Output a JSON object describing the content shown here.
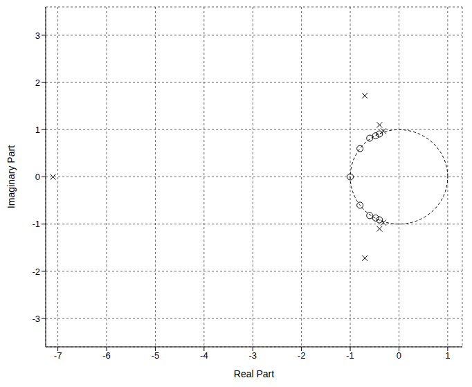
{
  "chart_data": {
    "type": "scatter",
    "x_label": "Real Part",
    "y_label": "Imaginary Part",
    "xlim": [
      -7.25,
      1.3
    ],
    "ylim": [
      -3.6,
      3.6
    ],
    "xticks": [
      -7,
      -6,
      -5,
      -4,
      -3,
      -2,
      -1,
      0,
      1
    ],
    "yticks": [
      -3,
      -2,
      -1,
      0,
      1,
      2,
      3
    ],
    "grid": true,
    "series": [
      {
        "marker": "x",
        "color": "#000000",
        "x": [
          -7.1,
          -0.7,
          -0.7,
          -0.4,
          -0.4,
          -0.32,
          -0.32
        ],
        "values": [
          0,
          1.72,
          -1.72,
          1.1,
          -1.1,
          0.97,
          -0.97
        ]
      },
      {
        "marker": "o",
        "color": "#000000",
        "x": [
          -1,
          -0.8,
          -0.8,
          -0.6,
          -0.6,
          -0.48,
          -0.48,
          -0.4,
          -0.4
        ],
        "values": [
          0,
          0.6,
          -0.6,
          0.82,
          -0.82,
          0.87,
          -0.87,
          0.91,
          -0.91
        ]
      }
    ],
    "unit_circle": {
      "radius": 1,
      "line_style": "dashed",
      "color": "#000000"
    }
  }
}
